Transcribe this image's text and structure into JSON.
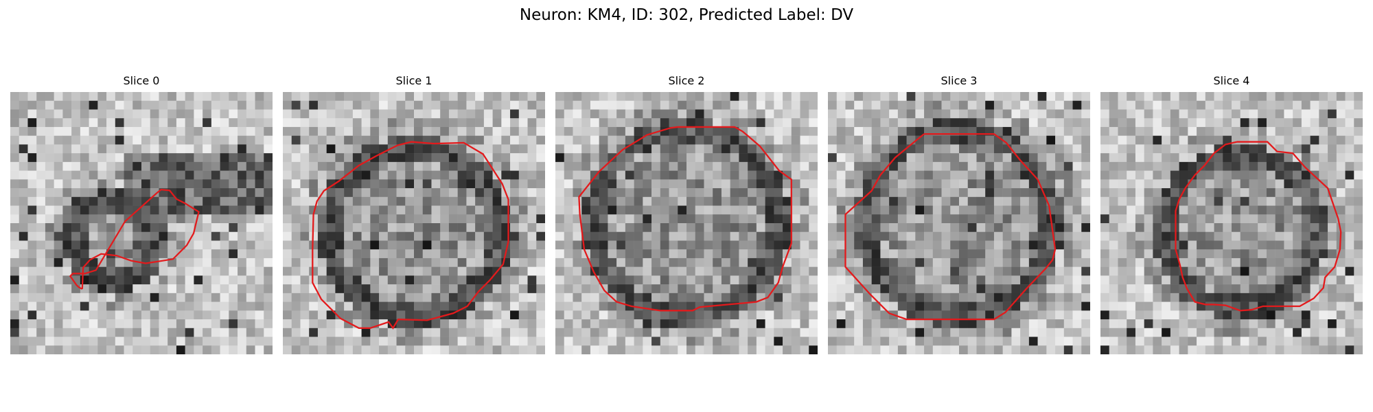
{
  "figure": {
    "title": "Neuron: KM4, ID: 302, Predicted Label: DV"
  },
  "panels": [
    {
      "title": "Slice 0",
      "image_description": "grayscale noisy microscopy patch with small irregular red contour",
      "seed": 11
    },
    {
      "title": "Slice 1",
      "image_description": "grayscale noisy microscopy patch with large rounded red contour",
      "seed": 23
    },
    {
      "title": "Slice 2",
      "image_description": "grayscale noisy microscopy patch with large octagonal red contour",
      "seed": 37
    },
    {
      "title": "Slice 3",
      "image_description": "grayscale noisy microscopy patch with large octagonal red contour",
      "seed": 41
    },
    {
      "title": "Slice 4",
      "image_description": "grayscale noisy microscopy patch with medium rounded red contour",
      "seed": 53
    }
  ],
  "colors": {
    "contour": "#e31a1c",
    "background": "#ffffff"
  }
}
